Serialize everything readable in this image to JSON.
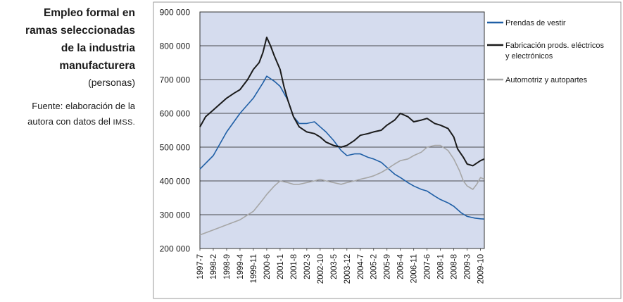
{
  "title_lines": [
    "Empleo formal en",
    "ramas seleccionadas",
    "de la industria",
    "manufacturera"
  ],
  "subtitle": "(personas)",
  "source_lines": [
    "Fuente: elaboración de la",
    "autora con datos del"
  ],
  "source_abbr": "IMSS.",
  "chart_data": {
    "type": "line",
    "title": "",
    "xlabel": "",
    "ylabel": "",
    "ylim": [
      200000,
      900000
    ],
    "y_ticks": [
      200000,
      300000,
      400000,
      500000,
      600000,
      700000,
      800000,
      900000
    ],
    "y_tick_labels": [
      "200 000",
      "300 000",
      "400 000",
      "500 000",
      "600 000",
      "700 000",
      "800 000",
      "900 000"
    ],
    "x_tick_labels": [
      "1997-7",
      "1998-2",
      "1998-9",
      "1999-4",
      "1999-11",
      "2000-6",
      "2001-1",
      "2001-8",
      "2002-3",
      "2002-10",
      "2003-5",
      "2003-12",
      "2004-7",
      "2005-2",
      "2005-9",
      "2006-4",
      "2006-11",
      "2007-6",
      "2008-1",
      "2008-8",
      "2009-3",
      "2009-10"
    ],
    "x_start": "1997-7",
    "x_end": "2009-12",
    "grid": "horizontal",
    "legend_position": "right",
    "plot_background": "#d5dcee",
    "series": [
      {
        "name": "Prendas de vestir",
        "color": "#1f5fa6",
        "points": [
          [
            "1997-7",
            435000
          ],
          [
            "1998-2",
            475000
          ],
          [
            "1998-9",
            545000
          ],
          [
            "1999-4",
            600000
          ],
          [
            "1999-11",
            645000
          ],
          [
            "2000-4",
            690000
          ],
          [
            "2000-6",
            710000
          ],
          [
            "2000-10",
            695000
          ],
          [
            "2001-1",
            680000
          ],
          [
            "2001-5",
            640000
          ],
          [
            "2001-8",
            590000
          ],
          [
            "2001-11",
            570000
          ],
          [
            "2002-3",
            570000
          ],
          [
            "2002-7",
            575000
          ],
          [
            "2002-10",
            560000
          ],
          [
            "2003-1",
            545000
          ],
          [
            "2003-5",
            520000
          ],
          [
            "2003-9",
            490000
          ],
          [
            "2003-12",
            475000
          ],
          [
            "2004-4",
            480000
          ],
          [
            "2004-7",
            480000
          ],
          [
            "2004-11",
            470000
          ],
          [
            "2005-2",
            465000
          ],
          [
            "2005-6",
            455000
          ],
          [
            "2005-9",
            440000
          ],
          [
            "2006-1",
            420000
          ],
          [
            "2006-4",
            410000
          ],
          [
            "2006-8",
            395000
          ],
          [
            "2006-11",
            385000
          ],
          [
            "2007-3",
            375000
          ],
          [
            "2007-6",
            370000
          ],
          [
            "2007-10",
            355000
          ],
          [
            "2008-1",
            345000
          ],
          [
            "2008-5",
            335000
          ],
          [
            "2008-8",
            325000
          ],
          [
            "2008-12",
            305000
          ],
          [
            "2009-3",
            295000
          ],
          [
            "2009-7",
            290000
          ],
          [
            "2009-10",
            288000
          ],
          [
            "2009-12",
            287000
          ]
        ]
      },
      {
        "name": "Fabricación prods. eléctricos y electrónicos",
        "legend_lines": [
          "Fabricación prods. eléctricos",
          "y electrónicos"
        ],
        "color": "#1a1a1a",
        "points": [
          [
            "1997-7",
            560000
          ],
          [
            "1997-10",
            590000
          ],
          [
            "1998-2",
            610000
          ],
          [
            "1998-6",
            630000
          ],
          [
            "1998-9",
            645000
          ],
          [
            "1999-1",
            660000
          ],
          [
            "1999-4",
            670000
          ],
          [
            "1999-8",
            700000
          ],
          [
            "1999-11",
            730000
          ],
          [
            "2000-2",
            750000
          ],
          [
            "2000-4",
            780000
          ],
          [
            "2000-6",
            825000
          ],
          [
            "2000-8",
            800000
          ],
          [
            "2000-10",
            770000
          ],
          [
            "2001-1",
            730000
          ],
          [
            "2001-3",
            680000
          ],
          [
            "2001-5",
            640000
          ],
          [
            "2001-8",
            590000
          ],
          [
            "2001-11",
            560000
          ],
          [
            "2002-3",
            545000
          ],
          [
            "2002-7",
            540000
          ],
          [
            "2002-10",
            530000
          ],
          [
            "2003-1",
            515000
          ],
          [
            "2003-5",
            505000
          ],
          [
            "2003-9",
            500000
          ],
          [
            "2003-12",
            505000
          ],
          [
            "2004-4",
            520000
          ],
          [
            "2004-7",
            535000
          ],
          [
            "2004-11",
            540000
          ],
          [
            "2005-2",
            545000
          ],
          [
            "2005-6",
            550000
          ],
          [
            "2005-9",
            565000
          ],
          [
            "2006-1",
            580000
          ],
          [
            "2006-4",
            600000
          ],
          [
            "2006-8",
            590000
          ],
          [
            "2006-11",
            575000
          ],
          [
            "2007-3",
            580000
          ],
          [
            "2007-6",
            585000
          ],
          [
            "2007-10",
            570000
          ],
          [
            "2008-1",
            565000
          ],
          [
            "2008-5",
            555000
          ],
          [
            "2008-8",
            530000
          ],
          [
            "2008-10",
            495000
          ],
          [
            "2009-1",
            470000
          ],
          [
            "2009-3",
            450000
          ],
          [
            "2009-6",
            445000
          ],
          [
            "2009-10",
            460000
          ],
          [
            "2009-12",
            465000
          ]
        ]
      },
      {
        "name": "Automotriz y autopartes",
        "color": "#a6a6a6",
        "points": [
          [
            "1997-7",
            240000
          ],
          [
            "1998-2",
            255000
          ],
          [
            "1998-9",
            270000
          ],
          [
            "1999-4",
            285000
          ],
          [
            "1999-11",
            310000
          ],
          [
            "2000-4",
            345000
          ],
          [
            "2000-6",
            360000
          ],
          [
            "2000-10",
            385000
          ],
          [
            "2001-1",
            400000
          ],
          [
            "2001-5",
            395000
          ],
          [
            "2001-8",
            390000
          ],
          [
            "2001-11",
            390000
          ],
          [
            "2002-3",
            395000
          ],
          [
            "2002-7",
            400000
          ],
          [
            "2002-10",
            405000
          ],
          [
            "2003-1",
            400000
          ],
          [
            "2003-5",
            395000
          ],
          [
            "2003-9",
            390000
          ],
          [
            "2003-12",
            395000
          ],
          [
            "2004-4",
            400000
          ],
          [
            "2004-7",
            405000
          ],
          [
            "2004-11",
            410000
          ],
          [
            "2005-2",
            415000
          ],
          [
            "2005-6",
            425000
          ],
          [
            "2005-9",
            435000
          ],
          [
            "2006-1",
            450000
          ],
          [
            "2006-4",
            460000
          ],
          [
            "2006-8",
            465000
          ],
          [
            "2006-11",
            475000
          ],
          [
            "2007-3",
            485000
          ],
          [
            "2007-6",
            500000
          ],
          [
            "2007-10",
            505000
          ],
          [
            "2008-1",
            505000
          ],
          [
            "2008-5",
            490000
          ],
          [
            "2008-8",
            465000
          ],
          [
            "2008-11",
            430000
          ],
          [
            "2009-1",
            400000
          ],
          [
            "2009-3",
            385000
          ],
          [
            "2009-6",
            375000
          ],
          [
            "2009-8",
            390000
          ],
          [
            "2009-10",
            410000
          ],
          [
            "2009-12",
            405000
          ]
        ]
      }
    ]
  }
}
